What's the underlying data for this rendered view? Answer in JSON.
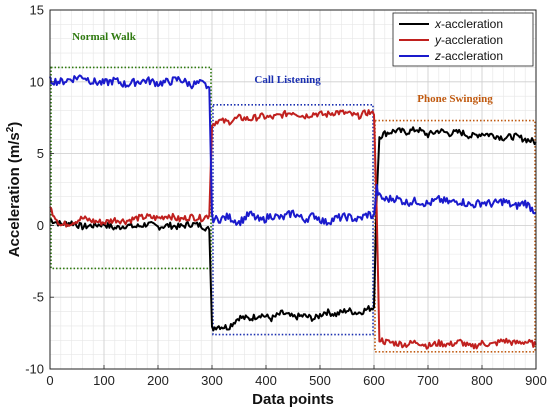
{
  "chart_data": {
    "type": "line",
    "xlabel": "Data points",
    "ylabel": "Acceleration (m/s",
    "ylabel_sup": "2",
    "ylabel_close": ")",
    "xlim": [
      0,
      900
    ],
    "ylim": [
      -10,
      15
    ],
    "x_ticks": [
      0,
      100,
      200,
      300,
      400,
      500,
      600,
      700,
      800,
      900
    ],
    "y_ticks": [
      -10,
      -5,
      0,
      5,
      10,
      15
    ],
    "grid": true,
    "legend_position": "top-right",
    "series": [
      {
        "name": "x-accleration",
        "name_italic": "x",
        "name_rest": "-accleration",
        "color": "#000000",
        "x": [
          0,
          20,
          40,
          60,
          80,
          100,
          120,
          140,
          160,
          180,
          200,
          220,
          240,
          260,
          280,
          295,
          300,
          310,
          330,
          350,
          370,
          390,
          410,
          430,
          450,
          470,
          490,
          510,
          530,
          550,
          570,
          590,
          600,
          605,
          610,
          620,
          640,
          660,
          680,
          700,
          720,
          740,
          760,
          780,
          800,
          820,
          840,
          860,
          880,
          900
        ],
        "y": [
          0.4,
          0.1,
          0.2,
          -0.1,
          0.0,
          0.1,
          -0.2,
          0.0,
          -0.1,
          0.1,
          -0.1,
          0.0,
          -0.1,
          0.1,
          0.0,
          -0.3,
          -7.2,
          -7.0,
          -7.1,
          -6.4,
          -6.5,
          -6.2,
          -6.5,
          -6.1,
          -6.4,
          -6.3,
          -6.5,
          -6.0,
          -6.2,
          -5.9,
          -6.1,
          -5.8,
          -5.7,
          2.0,
          6.2,
          6.4,
          6.6,
          6.5,
          6.7,
          6.3,
          6.6,
          6.4,
          6.5,
          6.2,
          6.4,
          6.3,
          6.1,
          6.2,
          6.0,
          5.8
        ]
      },
      {
        "name": "y-accleration",
        "name_italic": "y",
        "name_rest": "-accleration",
        "color": "#c0201e",
        "x": [
          0,
          10,
          20,
          40,
          60,
          80,
          100,
          120,
          140,
          160,
          180,
          200,
          220,
          240,
          260,
          280,
          295,
          300,
          310,
          330,
          350,
          370,
          390,
          410,
          430,
          450,
          470,
          490,
          510,
          530,
          550,
          570,
          590,
          600,
          605,
          610,
          620,
          640,
          660,
          680,
          700,
          720,
          740,
          760,
          780,
          800,
          820,
          840,
          860,
          880,
          900
        ],
        "y": [
          1.2,
          0.6,
          0.0,
          0.2,
          0.5,
          0.3,
          0.2,
          0.4,
          0.3,
          0.5,
          0.6,
          0.5,
          0.7,
          0.4,
          0.6,
          0.5,
          0.7,
          7.0,
          7.3,
          7.2,
          7.5,
          7.4,
          7.6,
          7.5,
          7.7,
          7.9,
          7.6,
          7.8,
          7.7,
          7.9,
          7.8,
          7.6,
          7.9,
          7.7,
          1.0,
          -7.9,
          -8.1,
          -8.2,
          -8.3,
          -8.1,
          -8.4,
          -8.2,
          -8.3,
          -8.1,
          -8.5,
          -8.2,
          -8.3,
          -8.0,
          -8.2,
          -8.1,
          -8.3
        ]
      },
      {
        "name": "z-accleration",
        "name_italic": "z",
        "name_rest": "-accleration",
        "color": "#1a1acc",
        "x": [
          0,
          20,
          40,
          60,
          80,
          100,
          120,
          140,
          160,
          180,
          200,
          220,
          240,
          260,
          280,
          295,
          300,
          310,
          330,
          350,
          370,
          390,
          410,
          430,
          450,
          470,
          490,
          510,
          530,
          550,
          570,
          590,
          600,
          605,
          610,
          620,
          640,
          660,
          680,
          700,
          720,
          740,
          760,
          780,
          800,
          820,
          840,
          860,
          880,
          900
        ],
        "y": [
          10.1,
          10.0,
          10.2,
          10.4,
          10.0,
          9.9,
          10.1,
          9.8,
          10.0,
          10.1,
          9.9,
          10.0,
          10.2,
          9.8,
          9.9,
          9.6,
          0.5,
          0.4,
          0.6,
          0.2,
          0.8,
          0.3,
          0.7,
          0.5,
          0.9,
          0.4,
          0.7,
          0.2,
          0.5,
          0.6,
          0.4,
          0.8,
          0.6,
          2.6,
          2.0,
          1.8,
          1.9,
          1.6,
          1.7,
          1.5,
          1.8,
          1.6,
          1.7,
          1.4,
          1.6,
          1.5,
          1.7,
          1.3,
          1.6,
          0.9
        ]
      }
    ],
    "annotations": [
      {
        "text": "Normal Walk",
        "color": "#2f7a10",
        "x_range": [
          0,
          300
        ],
        "y_range": [
          -3,
          11
        ],
        "label_x": 100,
        "label_y": 12.9
      },
      {
        "text": "Call Listening",
        "color": "#1a2fb0",
        "x_range": [
          300,
          600
        ],
        "y_range": [
          -7.6,
          8.4
        ],
        "label_x": 440,
        "label_y": 9.9
      },
      {
        "text": "Phone Swinging",
        "color": "#c05a10",
        "x_range": [
          600,
          900
        ],
        "y_range": [
          -8.8,
          7.3
        ],
        "label_x": 750,
        "label_y": 8.6
      }
    ]
  }
}
